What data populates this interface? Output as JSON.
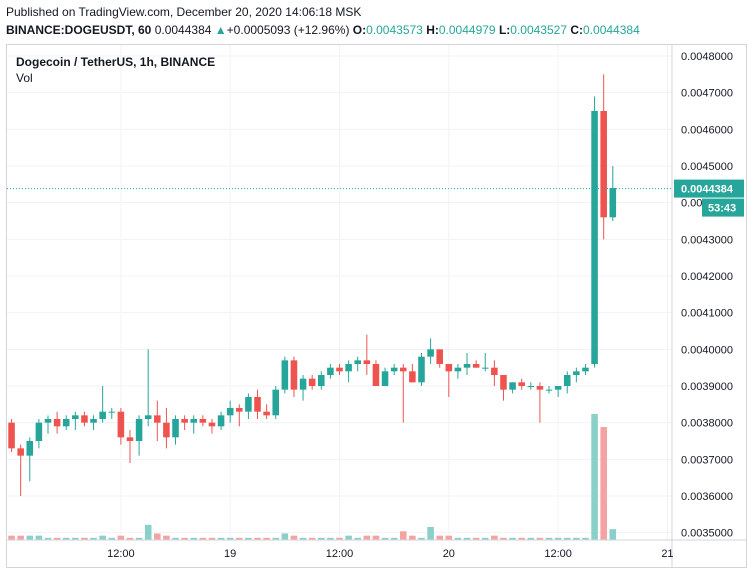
{
  "header": {
    "published": "Published on TradingView.com, December 20, 2020 14:06:18 MSK",
    "symbol_line": "BINANCE:DOGEUSDT, 60",
    "last_price": "0.0044384",
    "change_arrow": "▲",
    "change": "+0.0005093 (+12.96%)",
    "o_label": "O:",
    "o_value": "0.0043573",
    "h_label": "H:",
    "h_value": "0.0044979",
    "l_label": "L:",
    "l_value": "0.0043527",
    "c_label": "C:",
    "c_value": "0.0044384"
  },
  "legend": {
    "title": "Dogecoin / TetherUS, 1h, BINANCE",
    "volume_label": "Vol"
  },
  "price_tag": {
    "value": "0.0044384",
    "countdown": "53:43"
  },
  "colors": {
    "up": "#26a69a",
    "down": "#ef5350",
    "vol_up": "#8bd0c8",
    "vol_down": "#f5a3a2",
    "grid": "#f0f3fa",
    "price_line": "#26a69a"
  },
  "chart_data": {
    "type": "candlestick",
    "y_ticks": [
      "0.0048000",
      "0.0047000",
      "0.0046000",
      "0.0045000",
      "0.0044000",
      "0.0043000",
      "0.0042000",
      "0.0041000",
      "0.0040000",
      "0.0039000",
      "0.0038000",
      "0.0037000",
      "0.0036000",
      "0.0035000"
    ],
    "x_tick_labels": [
      {
        "label": "12:00",
        "index": 12
      },
      {
        "label": "19",
        "index": 24
      },
      {
        "label": "12:00",
        "index": 36
      },
      {
        "label": "20",
        "index": 48
      },
      {
        "label": "12:00",
        "index": 60
      },
      {
        "label": "21",
        "index": 72
      }
    ],
    "ylim": [
      0.00348,
      0.00483
    ],
    "index_range": [
      -0.5,
      72.5
    ],
    "grid": true,
    "current_price": 0.0044384,
    "candles": [
      {
        "o": 0.0038,
        "h": 0.00381,
        "l": 0.00372,
        "c": 0.00373,
        "v": 2
      },
      {
        "o": 0.00373,
        "h": 0.00374,
        "l": 0.0036,
        "c": 0.00371,
        "v": 2
      },
      {
        "o": 0.00371,
        "h": 0.00376,
        "l": 0.00364,
        "c": 0.00375,
        "v": 2
      },
      {
        "o": 0.00375,
        "h": 0.00381,
        "l": 0.00373,
        "c": 0.0038,
        "v": 2
      },
      {
        "o": 0.0038,
        "h": 0.00382,
        "l": 0.00377,
        "c": 0.00381,
        "v": 1
      },
      {
        "o": 0.00381,
        "h": 0.00383,
        "l": 0.00377,
        "c": 0.00379,
        "v": 1
      },
      {
        "o": 0.00379,
        "h": 0.00382,
        "l": 0.00378,
        "c": 0.00381,
        "v": 1
      },
      {
        "o": 0.00381,
        "h": 0.00383,
        "l": 0.00378,
        "c": 0.00382,
        "v": 1
      },
      {
        "o": 0.00382,
        "h": 0.00383,
        "l": 0.00379,
        "c": 0.0038,
        "v": 1
      },
      {
        "o": 0.0038,
        "h": 0.00382,
        "l": 0.00378,
        "c": 0.00381,
        "v": 1
      },
      {
        "o": 0.00381,
        "h": 0.0039,
        "l": 0.0038,
        "c": 0.00383,
        "v": 2
      },
      {
        "o": 0.00383,
        "h": 0.00384,
        "l": 0.00381,
        "c": 0.00383,
        "v": 1
      },
      {
        "o": 0.00383,
        "h": 0.00384,
        "l": 0.00374,
        "c": 0.00376,
        "v": 2
      },
      {
        "o": 0.00376,
        "h": 0.00378,
        "l": 0.00369,
        "c": 0.00375,
        "v": 1
      },
      {
        "o": 0.00375,
        "h": 0.00382,
        "l": 0.00371,
        "c": 0.00381,
        "v": 1
      },
      {
        "o": 0.00381,
        "h": 0.004,
        "l": 0.00379,
        "c": 0.00382,
        "v": 7
      },
      {
        "o": 0.00382,
        "h": 0.00386,
        "l": 0.00375,
        "c": 0.0038,
        "v": 3
      },
      {
        "o": 0.0038,
        "h": 0.00384,
        "l": 0.00373,
        "c": 0.00376,
        "v": 2
      },
      {
        "o": 0.00376,
        "h": 0.00382,
        "l": 0.00374,
        "c": 0.00381,
        "v": 1
      },
      {
        "o": 0.00381,
        "h": 0.00382,
        "l": 0.00378,
        "c": 0.0038,
        "v": 1
      },
      {
        "o": 0.0038,
        "h": 0.00382,
        "l": 0.00377,
        "c": 0.00381,
        "v": 1
      },
      {
        "o": 0.00381,
        "h": 0.00382,
        "l": 0.00379,
        "c": 0.0038,
        "v": 1
      },
      {
        "o": 0.0038,
        "h": 0.00381,
        "l": 0.00377,
        "c": 0.00379,
        "v": 1
      },
      {
        "o": 0.00379,
        "h": 0.00383,
        "l": 0.00378,
        "c": 0.00382,
        "v": 1
      },
      {
        "o": 0.00382,
        "h": 0.00386,
        "l": 0.0038,
        "c": 0.00384,
        "v": 1
      },
      {
        "o": 0.00384,
        "h": 0.00385,
        "l": 0.00379,
        "c": 0.00383,
        "v": 1
      },
      {
        "o": 0.00383,
        "h": 0.00388,
        "l": 0.00381,
        "c": 0.00387,
        "v": 1
      },
      {
        "o": 0.00387,
        "h": 0.00389,
        "l": 0.00381,
        "c": 0.00383,
        "v": 1
      },
      {
        "o": 0.00383,
        "h": 0.00385,
        "l": 0.00381,
        "c": 0.00382,
        "v": 1
      },
      {
        "o": 0.00382,
        "h": 0.0039,
        "l": 0.00381,
        "c": 0.00389,
        "v": 1
      },
      {
        "o": 0.00389,
        "h": 0.00398,
        "l": 0.00388,
        "c": 0.00397,
        "v": 3
      },
      {
        "o": 0.00397,
        "h": 0.00398,
        "l": 0.00387,
        "c": 0.00389,
        "v": 2
      },
      {
        "o": 0.00389,
        "h": 0.00393,
        "l": 0.00386,
        "c": 0.00392,
        "v": 1
      },
      {
        "o": 0.00392,
        "h": 0.00393,
        "l": 0.00389,
        "c": 0.0039,
        "v": 1
      },
      {
        "o": 0.0039,
        "h": 0.00394,
        "l": 0.00389,
        "c": 0.00393,
        "v": 1
      },
      {
        "o": 0.00393,
        "h": 0.00396,
        "l": 0.00392,
        "c": 0.00395,
        "v": 1
      },
      {
        "o": 0.00395,
        "h": 0.00396,
        "l": 0.00393,
        "c": 0.00394,
        "v": 1
      },
      {
        "o": 0.00394,
        "h": 0.00397,
        "l": 0.00391,
        "c": 0.00396,
        "v": 2
      },
      {
        "o": 0.00396,
        "h": 0.00398,
        "l": 0.00394,
        "c": 0.00397,
        "v": 1
      },
      {
        "o": 0.00397,
        "h": 0.00404,
        "l": 0.00393,
        "c": 0.00396,
        "v": 2
      },
      {
        "o": 0.00396,
        "h": 0.00397,
        "l": 0.0039,
        "c": 0.0039,
        "v": 2
      },
      {
        "o": 0.0039,
        "h": 0.00395,
        "l": 0.0039,
        "c": 0.00394,
        "v": 1
      },
      {
        "o": 0.00394,
        "h": 0.00396,
        "l": 0.00393,
        "c": 0.00395,
        "v": 1
      },
      {
        "o": 0.00395,
        "h": 0.00396,
        "l": 0.0038,
        "c": 0.00394,
        "v": 4
      },
      {
        "o": 0.00394,
        "h": 0.00396,
        "l": 0.00391,
        "c": 0.00391,
        "v": 2
      },
      {
        "o": 0.00391,
        "h": 0.00399,
        "l": 0.0039,
        "c": 0.00398,
        "v": 1
      },
      {
        "o": 0.00398,
        "h": 0.00403,
        "l": 0.00396,
        "c": 0.004,
        "v": 6
      },
      {
        "o": 0.004,
        "h": 0.004,
        "l": 0.00395,
        "c": 0.00396,
        "v": 2
      },
      {
        "o": 0.00396,
        "h": 0.00396,
        "l": 0.00387,
        "c": 0.00394,
        "v": 2
      },
      {
        "o": 0.00394,
        "h": 0.00396,
        "l": 0.00392,
        "c": 0.00395,
        "v": 1
      },
      {
        "o": 0.00395,
        "h": 0.00399,
        "l": 0.00393,
        "c": 0.00396,
        "v": 1
      },
      {
        "o": 0.00396,
        "h": 0.00397,
        "l": 0.00395,
        "c": 0.00395,
        "v": 1
      },
      {
        "o": 0.00395,
        "h": 0.00399,
        "l": 0.00394,
        "c": 0.00395,
        "v": 1
      },
      {
        "o": 0.00395,
        "h": 0.00397,
        "l": 0.0039,
        "c": 0.00393,
        "v": 2
      },
      {
        "o": 0.00393,
        "h": 0.00393,
        "l": 0.00386,
        "c": 0.00389,
        "v": 1
      },
      {
        "o": 0.00389,
        "h": 0.00391,
        "l": 0.00388,
        "c": 0.00391,
        "v": 1
      },
      {
        "o": 0.00391,
        "h": 0.00392,
        "l": 0.00389,
        "c": 0.0039,
        "v": 1
      },
      {
        "o": 0.0039,
        "h": 0.00391,
        "l": 0.00389,
        "c": 0.0039,
        "v": 1
      },
      {
        "o": 0.0039,
        "h": 0.00391,
        "l": 0.0038,
        "c": 0.00389,
        "v": 1
      },
      {
        "o": 0.00389,
        "h": 0.0039,
        "l": 0.00388,
        "c": 0.00389,
        "v": 1
      },
      {
        "o": 0.00389,
        "h": 0.0039,
        "l": 0.00387,
        "c": 0.0039,
        "v": 1
      },
      {
        "o": 0.0039,
        "h": 0.00394,
        "l": 0.00388,
        "c": 0.00393,
        "v": 1
      },
      {
        "o": 0.00393,
        "h": 0.00395,
        "l": 0.00391,
        "c": 0.00394,
        "v": 1
      },
      {
        "o": 0.00394,
        "h": 0.00396,
        "l": 0.00393,
        "c": 0.00395,
        "v": 1
      },
      {
        "o": 0.00396,
        "h": 0.00469,
        "l": 0.00395,
        "c": 0.00465,
        "v": 58
      },
      {
        "o": 0.00465,
        "h": 0.00475,
        "l": 0.0043,
        "c": 0.00436,
        "v": 52
      },
      {
        "o": 0.00436,
        "h": 0.0045,
        "l": 0.00435,
        "c": 0.00444,
        "v": 5
      }
    ]
  }
}
